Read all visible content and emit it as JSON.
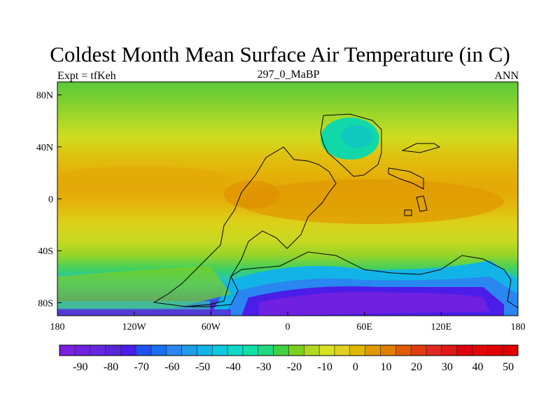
{
  "title": "Coldest Month Mean Surface Air Temperature (in C)",
  "left_label": "Expt = tfKeh",
  "center_label": "297_0_MaBP",
  "right_label": "ANN",
  "map": {
    "lon_ticks": [
      {
        "value": -180,
        "label": "180"
      },
      {
        "value": -120,
        "label": "120W"
      },
      {
        "value": -60,
        "label": "60W"
      },
      {
        "value": 0,
        "label": "0"
      },
      {
        "value": 60,
        "label": "60E"
      },
      {
        "value": 120,
        "label": "120E"
      },
      {
        "value": 180,
        "label": "180"
      }
    ],
    "lat_ticks": [
      {
        "value": 80,
        "label": "80N"
      },
      {
        "value": 40,
        "label": "40N"
      },
      {
        "value": 0,
        "label": "0"
      },
      {
        "value": -40,
        "label": "40S"
      },
      {
        "value": -80,
        "label": "80S"
      }
    ]
  },
  "colorbar": {
    "min": -95,
    "max": 55,
    "step": 5,
    "labels": [
      "-90",
      "-80",
      "-70",
      "-60",
      "-50",
      "-40",
      "-30",
      "-20",
      "-10",
      "0",
      "10",
      "20",
      "30",
      "40",
      "50"
    ],
    "label_values": [
      -90,
      -80,
      -70,
      -60,
      -50,
      -40,
      -30,
      -20,
      -10,
      0,
      10,
      20,
      30,
      40,
      50
    ],
    "colors": [
      "#7b1fe0",
      "#7020e0",
      "#6428e0",
      "#5826d8",
      "#4a1ee8",
      "#2050f0",
      "#1a6ef0",
      "#2a86f0",
      "#1e9ce8",
      "#12b4e8",
      "#10c8e0",
      "#10d8c8",
      "#10e0a8",
      "#20d880",
      "#40d040",
      "#7ad020",
      "#b0d820",
      "#d8e020",
      "#e0d020",
      "#e0b800",
      "#e09a00",
      "#e07e00",
      "#e05a00",
      "#e03c10",
      "#e02820",
      "#e01818",
      "#e00010",
      "#e00808",
      "#e00000",
      "#e00000"
    ]
  }
}
